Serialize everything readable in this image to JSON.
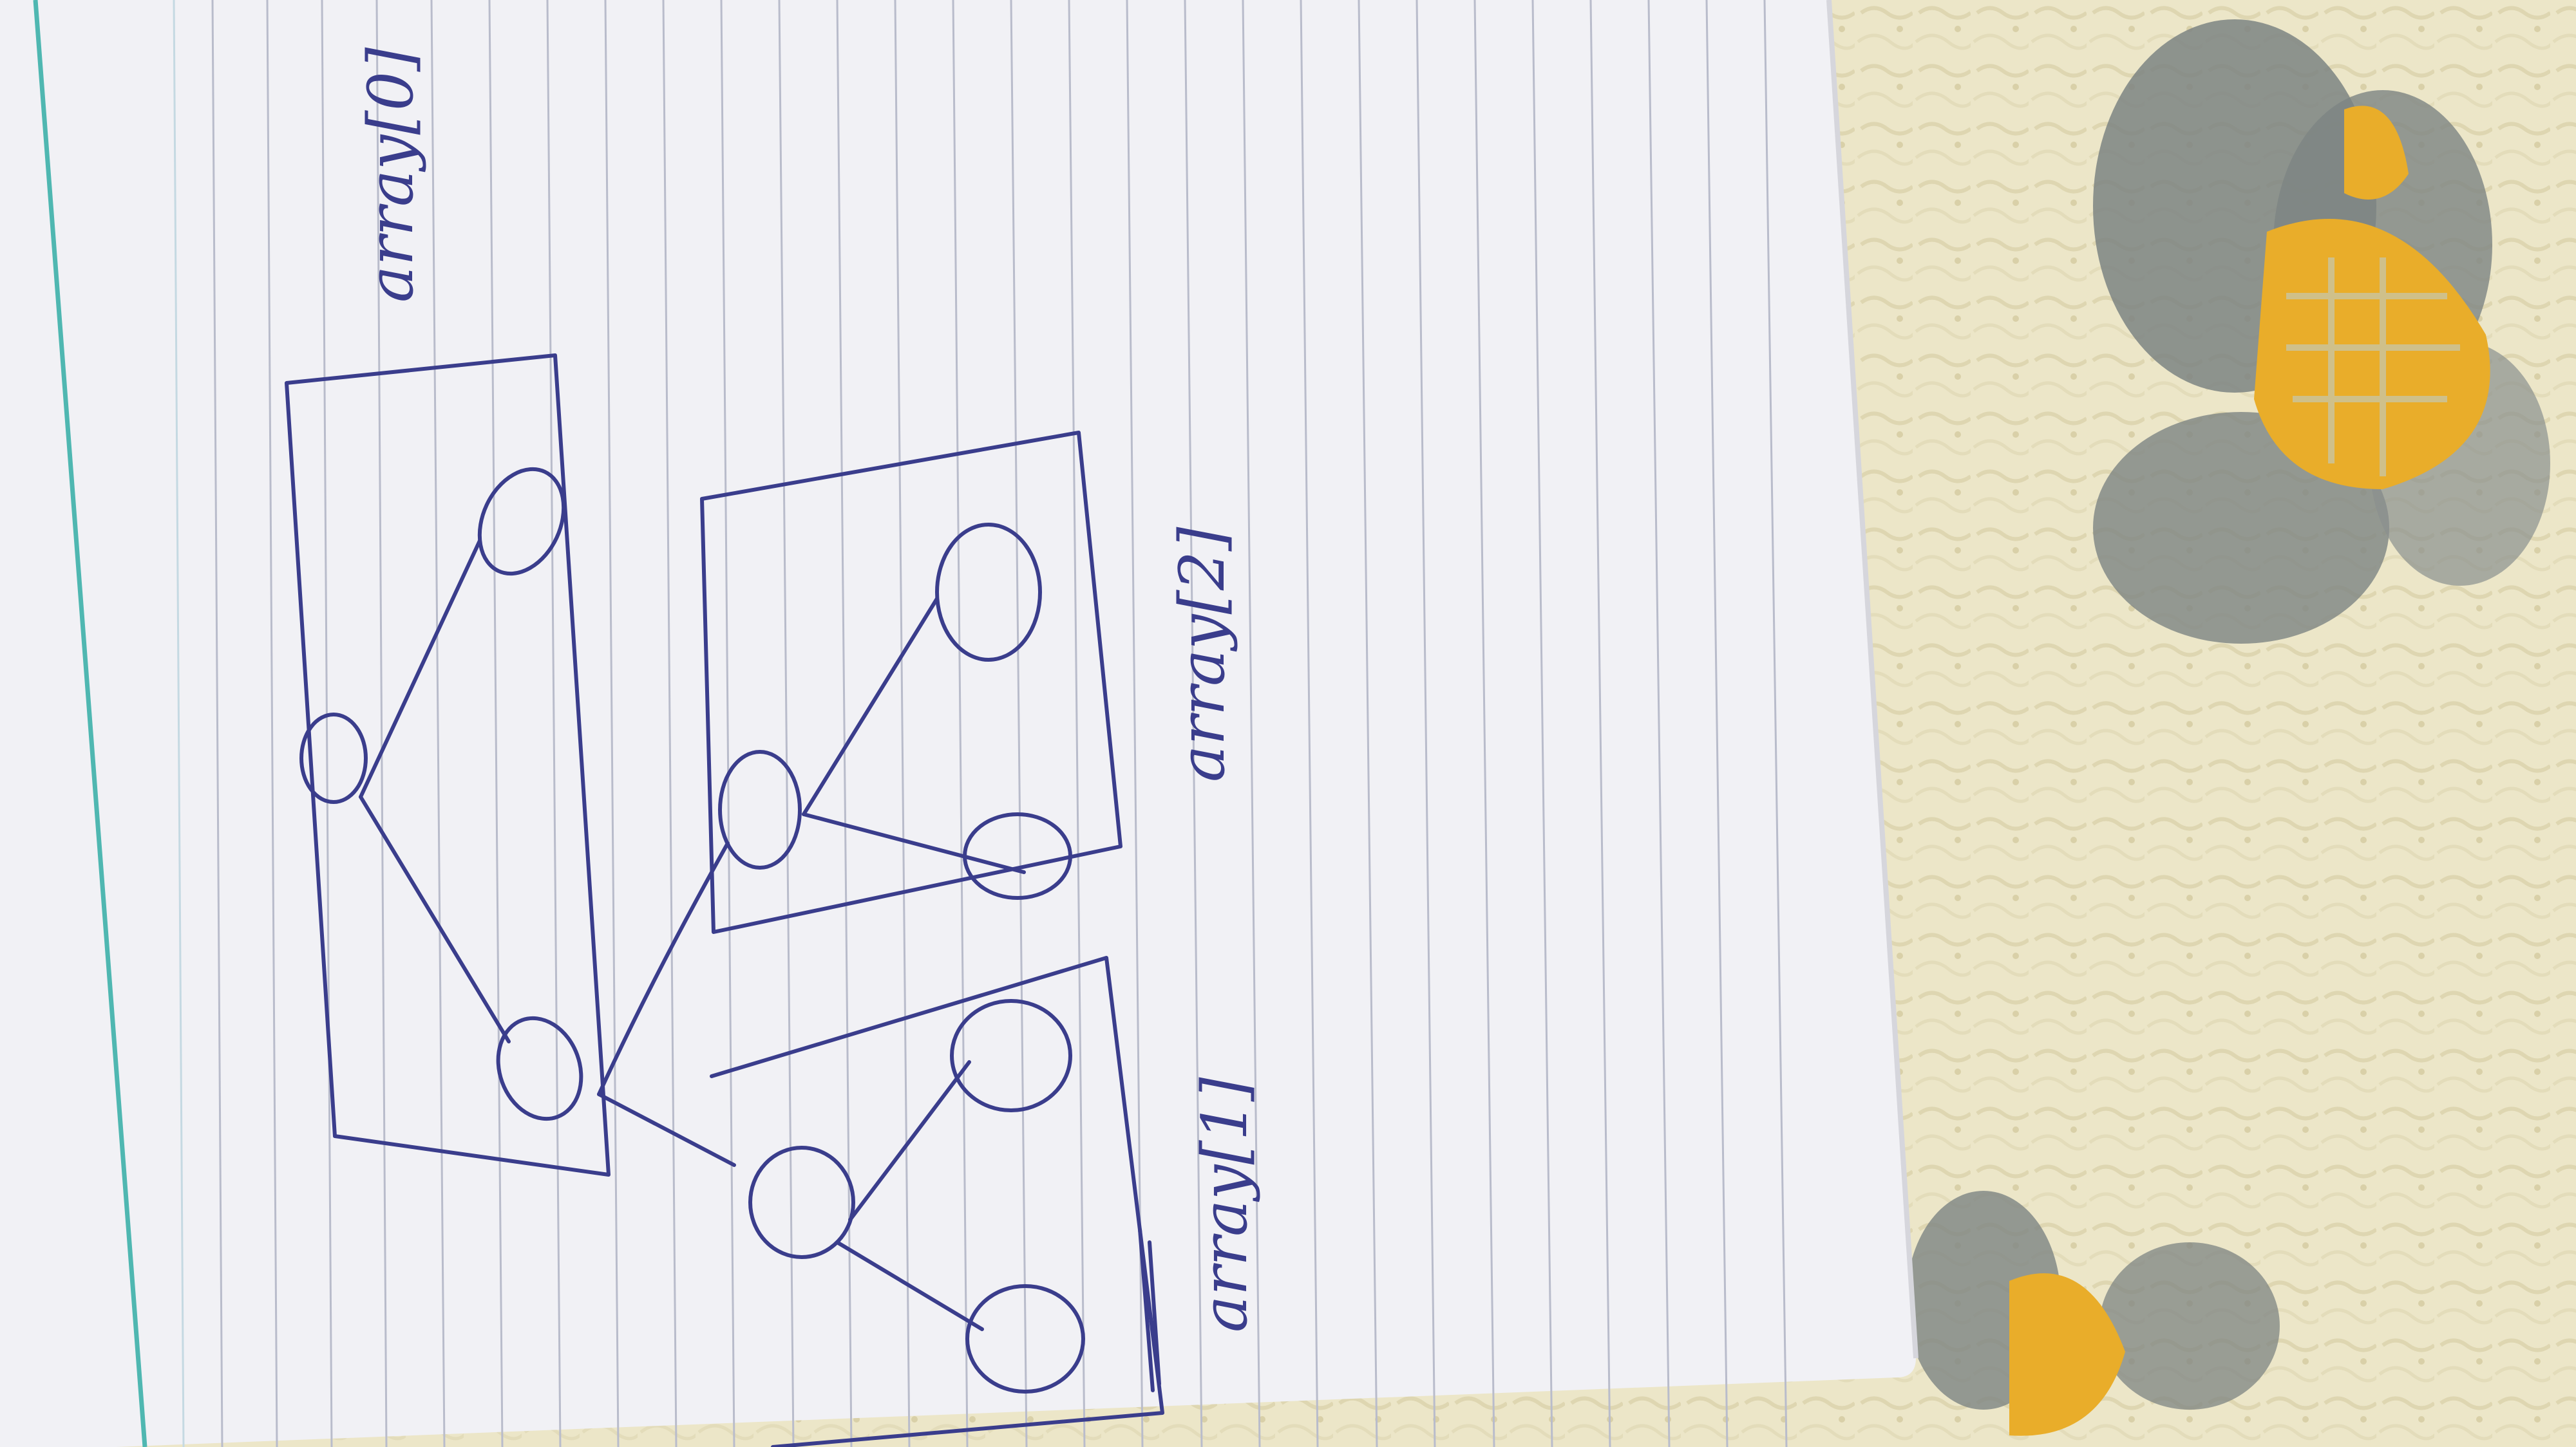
{
  "photo": {
    "subject": "handwritten sketch on ruled notebook paper",
    "orientation": "rotated 90 degrees (paper lines run vertically)",
    "labels": {
      "array0": "array[0]",
      "array1": "array[1]",
      "array2": "array[2]"
    },
    "ink_color": "#3a3d8c",
    "paper_color": "#f1f1f5",
    "rule_color": "#b9bccb",
    "margin_color": "#4fb7b1",
    "fabric_base_color": "#ece6c8",
    "flower_yellow": "#e9ad2a",
    "flower_grey": "#7d8483"
  }
}
